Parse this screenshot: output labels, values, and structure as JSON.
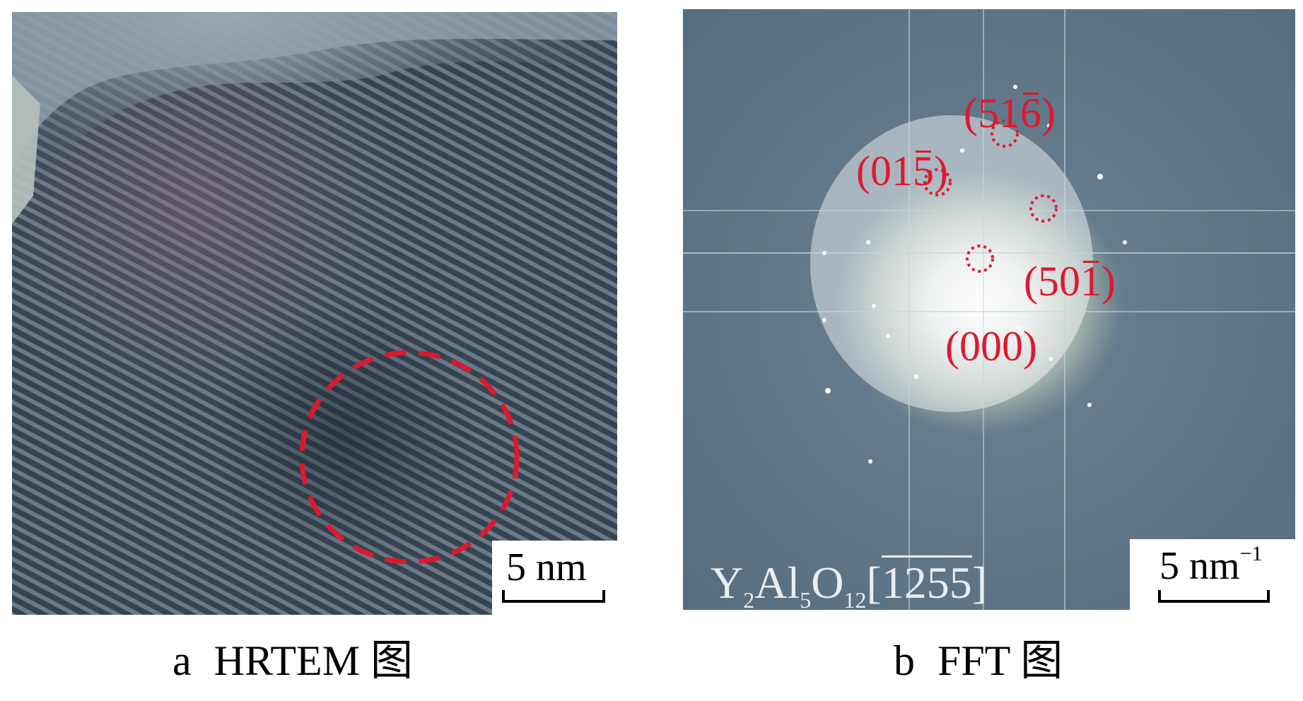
{
  "panels": {
    "a": {
      "caption_letter": "a",
      "caption_text": "HRTEM 图",
      "scale_value": "5 nm"
    },
    "b": {
      "caption_letter": "b",
      "caption_text": "FFT 图",
      "scale_value": "5 nm",
      "scale_exp": "−1",
      "zone_axis": {
        "y": "Y",
        "y_sub": "2",
        "al": "Al",
        "al_sub": "5",
        "o": "O",
        "o_sub": "12",
        "axis_bracket_open": "[",
        "axis_digits": "1255",
        "axis_bracket_close": "]"
      },
      "spots": [
        {
          "label_open": "(",
          "plain": "51",
          "barred": "6",
          "label_close": ")"
        },
        {
          "label_open": "(",
          "plain": "01",
          "barred": "5",
          "label_close": ")"
        },
        {
          "label_open": "(",
          "plain": "50",
          "barred": "1",
          "label_close": ")"
        },
        {
          "label_open": "(",
          "plain": "000",
          "barred": "",
          "label_close": ")"
        }
      ]
    }
  },
  "colors": {
    "marker_red": "#e0182d",
    "micrograph_base": "#3b4b5a",
    "fft_background": "#5e7587"
  }
}
